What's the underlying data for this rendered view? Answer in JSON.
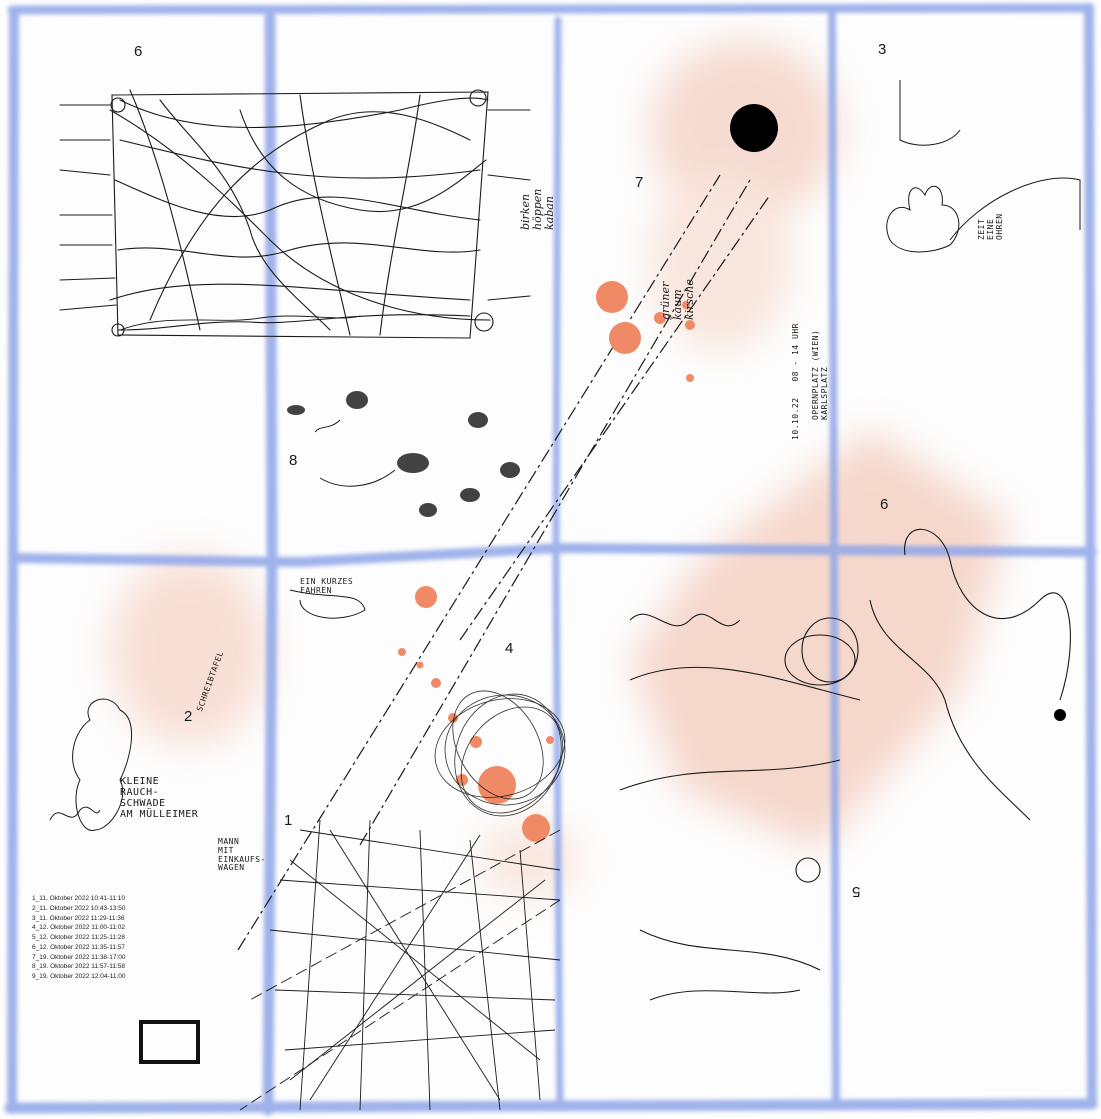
{
  "colors": {
    "paper": "#fdfdfd",
    "fold_blue": "#8fa6e8",
    "wash_peach": "#f1c0ae",
    "dot_orange": "#f08a66",
    "ink": "#1a1a1a"
  },
  "panel_numbers": {
    "p1": "1",
    "p2": "2",
    "p3": "3",
    "p4": "4",
    "p5": "5",
    "p6a": "6",
    "p6b": "6",
    "p7": "7",
    "p8": "8"
  },
  "hand_notes": {
    "wolke_title": "KLEINE\nRAUCH-\nSCHWADE\nAM MÜLLEIMER",
    "wolke_arrow": "MANN\nMIT\nEINKAUFS-\nWAGEN",
    "kurzes_fahren": "EIN KURZES\nFAHREN",
    "schreibtafel": "SCHREIBTAFEL",
    "wort_col1": "birken\nhöppen\nkaban",
    "wort_col2": "grüner\nkaum\nkirsche",
    "location": "OPERNPLATZ (WIEN)\nKARLSPLATZ",
    "times_right": "10.10.22   08 - 14 UHR",
    "bunny_note": "ZEIT\nEINE\nOHREN"
  },
  "legend": [
    "1_11. Oktober 2022 10:41-11:10",
    "2_11. Oktober 2022 10:43-13:50",
    "3_11. Oktober 2022 11:29-11:36",
    "4_12. Oktober 2022 11:00-11:02",
    "5_12. Oktober 2022 11:25-11:28",
    "6_12. Oktober 2022 11:35-11:57",
    "7_19. Oktober 2022 11:38-17:00",
    "8_19. Oktober 2022 11:57-11:58",
    "9_19. Oktober 2022 12:04-11:00"
  ],
  "icons": {
    "black_dot": "filled-black-circle",
    "frame_mark": "hollow-black-rectangle"
  }
}
